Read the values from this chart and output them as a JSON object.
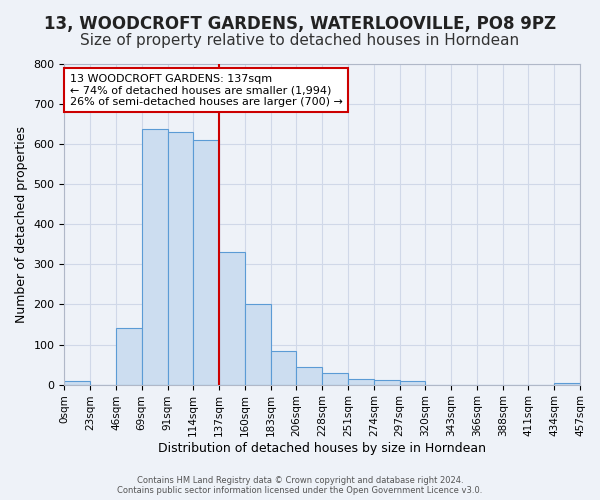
{
  "title": "13, WOODCROFT GARDENS, WATERLOOVILLE, PO8 9PZ",
  "subtitle": "Size of property relative to detached houses in Horndean",
  "xlabel": "Distribution of detached houses by size in Horndean",
  "ylabel": "Number of detached properties",
  "bar_labels": [
    "0sqm",
    "23sqm",
    "46sqm",
    "69sqm",
    "91sqm",
    "114sqm",
    "137sqm",
    "160sqm",
    "183sqm",
    "206sqm",
    "228sqm",
    "251sqm",
    "274sqm",
    "297sqm",
    "320sqm",
    "343sqm",
    "366sqm",
    "388sqm",
    "411sqm",
    "434sqm",
    "457sqm"
  ],
  "bar_values": [
    8,
    0,
    140,
    638,
    630,
    610,
    330,
    200,
    83,
    45,
    28,
    13,
    12,
    8,
    0,
    0,
    0,
    0,
    0,
    5
  ],
  "bar_color": "#ccddf0",
  "bar_edge_color": "#5b9bd5",
  "red_line_index": 6,
  "red_line_color": "#cc0000",
  "annotation_text": "13 WOODCROFT GARDENS: 137sqm\n← 74% of detached houses are smaller (1,994)\n26% of semi-detached houses are larger (700) →",
  "annotation_box_color": "#ffffff",
  "annotation_box_edge_color": "#cc0000",
  "ylim": [
    0,
    800
  ],
  "yticks": [
    0,
    100,
    200,
    300,
    400,
    500,
    600,
    700,
    800
  ],
  "grid_color": "#d0d8e8",
  "background_color": "#eef2f8",
  "title_fontsize": 12,
  "subtitle_fontsize": 11,
  "footer1": "Contains HM Land Registry data © Crown copyright and database right 2024.",
  "footer2": "Contains public sector information licensed under the Open Government Licence v3.0."
}
